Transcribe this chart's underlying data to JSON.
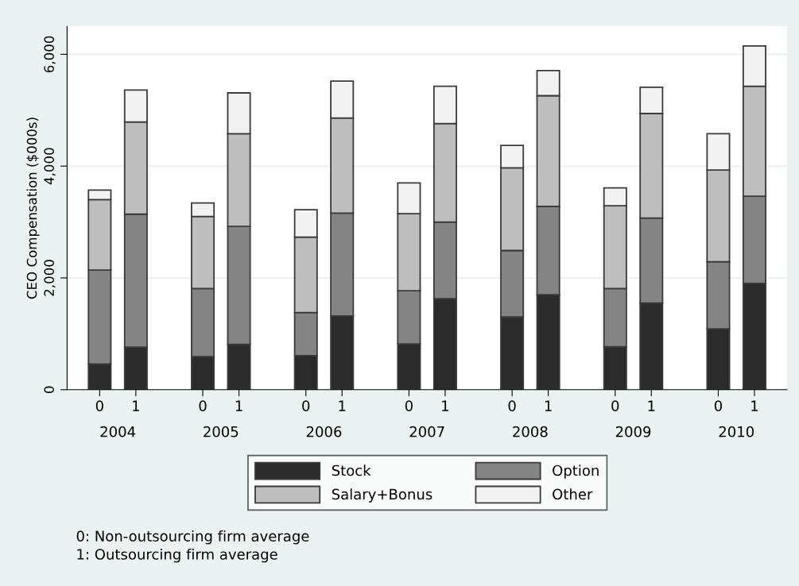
{
  "chart_data": {
    "type": "bar",
    "stacked": true,
    "ylabel": "CEO Compensation ($000s)",
    "categories": [
      "0",
      "1",
      "0",
      "1",
      "0",
      "1",
      "0",
      "1",
      "0",
      "1",
      "0",
      "1",
      "0",
      "1"
    ],
    "series": [
      {
        "name": "Stock",
        "color": "#2b2b2b",
        "values": [
          460,
          760,
          590,
          810,
          610,
          1320,
          820,
          1630,
          1300,
          1700,
          770,
          1550,
          1090,
          1900
        ]
      },
      {
        "name": "Option",
        "color": "#848484",
        "values": [
          1680,
          2380,
          1220,
          2110,
          770,
          1840,
          950,
          1370,
          1190,
          1580,
          1040,
          1520,
          1200,
          1560
        ]
      },
      {
        "name": "Salary+Bonus",
        "color": "#bebebe",
        "values": [
          1260,
          1650,
          1290,
          1660,
          1350,
          1700,
          1380,
          1760,
          1480,
          1980,
          1480,
          1870,
          1640,
          1970
        ]
      },
      {
        "name": "Other",
        "color": "#f2f2f2",
        "values": [
          170,
          570,
          240,
          730,
          490,
          660,
          550,
          670,
          400,
          450,
          320,
          470,
          650,
          720
        ]
      }
    ],
    "ylim": [
      0,
      6500
    ],
    "yticks": [
      {
        "value": 0,
        "label": "0"
      },
      {
        "value": 2000,
        "label": "2,000"
      },
      {
        "value": 4000,
        "label": "4,000"
      },
      {
        "value": 6000,
        "label": "6,000"
      }
    ],
    "grid": "y",
    "legend": "bottom",
    "annotations": [
      "2004",
      "2005",
      "2006",
      "2007",
      "2008",
      "2009",
      "2010",
      "0: Non-outsourcing firm average",
      "1: Outsourcing firm average"
    ]
  }
}
